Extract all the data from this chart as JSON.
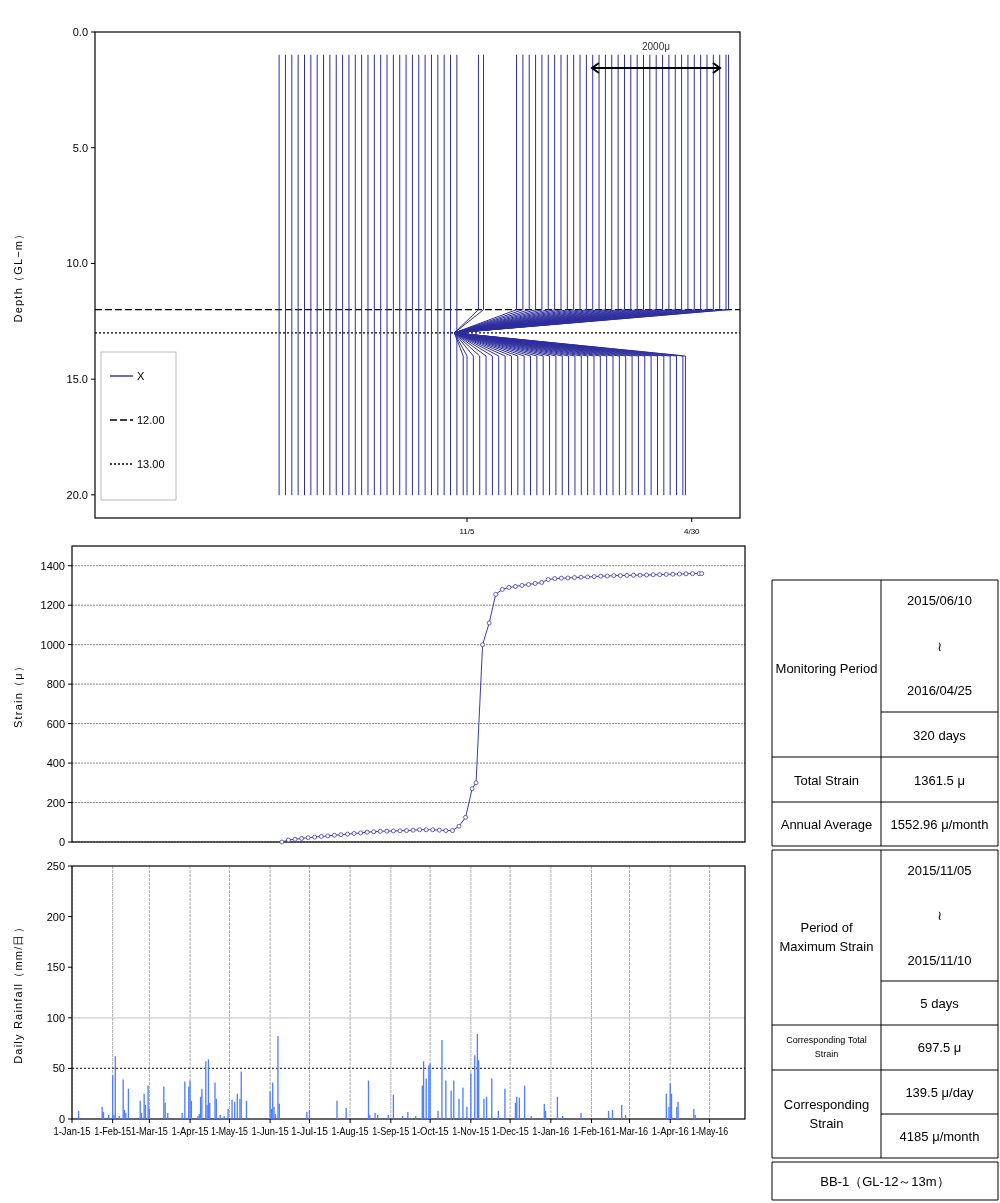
{
  "chart_data": [
    {
      "type": "line",
      "ylabel": "Depth（GL−m）",
      "xlim": [
        "2015-01-16",
        "2016-06-07"
      ],
      "xticks": [
        {
          "value": "2015-11-05",
          "label": "11/5"
        },
        {
          "value": "2016-04-30",
          "label": "4/30"
        }
      ],
      "ylim": [
        21,
        0
      ],
      "yticks": [
        {
          "value": 0,
          "label": "0.0"
        },
        {
          "value": 5,
          "label": "5.0"
        },
        {
          "value": 10,
          "label": "10.0"
        },
        {
          "value": 15,
          "label": "15.0"
        },
        {
          "value": 20,
          "label": "20.0"
        }
      ],
      "legend": "bottom left",
      "annotations": [
        "2000μ"
      ],
      "ref_lines": [
        {
          "axis": "y",
          "value": 12,
          "label": "12.00",
          "color": "#000000",
          "line_style": "dashed"
        },
        {
          "axis": "y",
          "value": 13,
          "label": "13.00",
          "color": "#000000",
          "line_style": "dotted"
        }
      ],
      "series": [
        {
          "name": "X",
          "color": "#2e2e9e",
          "x": [
            "2015-06-10",
            "2015-06-10",
            null,
            "2015-06-15",
            "2015-06-15",
            null,
            "2015-06-20",
            "2015-06-20",
            null,
            "2015-06-25",
            "2015-06-25",
            null,
            "2015-06-30",
            "2015-06-30",
            null,
            "2015-07-05",
            "2015-07-05",
            null,
            "2015-07-10",
            "2015-07-10",
            null,
            "2015-07-15",
            "2015-07-15",
            null,
            "2015-07-20",
            "2015-07-20",
            null,
            "2015-07-25",
            "2015-07-25",
            null,
            "2015-07-30",
            "2015-07-30",
            null,
            "2015-08-04",
            "2015-08-04",
            null,
            "2015-08-09",
            "2015-08-09",
            null,
            "2015-08-14",
            "2015-08-14",
            null,
            "2015-08-19",
            "2015-08-19",
            null,
            "2015-08-24",
            "2015-08-24",
            null,
            "2015-08-29",
            "2015-08-29",
            null,
            "2015-09-03",
            "2015-09-03",
            null,
            "2015-09-08",
            "2015-09-08",
            null,
            "2015-09-13",
            "2015-09-13",
            null,
            "2015-09-18",
            "2015-09-18",
            null,
            "2015-09-23",
            "2015-09-23",
            null,
            "2015-09-28",
            "2015-09-28",
            null,
            "2015-10-03",
            "2015-10-03",
            null,
            "2015-10-08",
            "2015-10-08",
            null,
            "2015-10-13",
            "2015-10-13",
            null,
            "2015-10-18",
            "2015-10-18",
            null,
            "2015-10-23",
            "2015-10-23",
            null,
            "2015-10-28",
            "2015-10-28",
            null,
            "2015-11-02",
            "2015-11-02",
            "2015-10-26",
            "2015-11-14",
            "2015-11-14",
            null,
            "2015-11-05",
            "2015-11-05",
            "2015-10-26",
            "2015-11-18",
            "2015-11-18",
            null,
            "2015-11-10",
            "2015-11-10",
            "2015-10-26",
            "2015-12-14",
            "2015-12-14",
            null,
            "2015-11-15",
            "2015-11-15",
            "2015-10-26",
            "2015-12-19",
            "2015-12-19",
            null,
            "2015-11-20",
            "2015-11-20",
            "2015-10-26",
            "2015-12-24",
            "2015-12-24",
            null,
            "2015-11-25",
            "2015-11-25",
            "2015-10-26",
            "2015-12-29",
            "2015-12-29",
            null,
            "2015-11-30",
            "2015-11-30",
            "2015-10-26",
            "2016-01-03",
            "2016-01-03",
            null,
            "2015-12-05",
            "2015-12-05",
            "2015-10-26",
            "2016-01-08",
            "2016-01-08",
            null,
            "2015-12-10",
            "2015-12-10",
            "2015-10-26",
            "2016-01-13",
            "2016-01-13",
            null,
            "2015-12-15",
            "2015-12-15",
            "2015-10-26",
            "2016-01-18",
            "2016-01-18",
            null,
            "2015-12-20",
            "2015-12-20",
            "2015-10-26",
            "2016-01-23",
            "2016-01-23",
            null,
            "2015-12-25",
            "2015-12-25",
            "2015-10-26",
            "2016-01-28",
            "2016-01-28",
            null,
            "2015-12-30",
            "2015-12-30",
            "2015-10-26",
            "2016-02-02",
            "2016-02-02",
            null,
            "2016-01-04",
            "2016-01-04",
            "2015-10-26",
            "2016-02-07",
            "2016-02-07",
            null,
            "2016-01-09",
            "2016-01-09",
            "2015-10-26",
            "2016-02-12",
            "2016-02-12",
            null,
            "2016-01-14",
            "2016-01-14",
            "2015-10-26",
            "2016-02-17",
            "2016-02-17",
            null,
            "2016-01-19",
            "2016-01-19",
            "2015-10-26",
            "2016-02-22",
            "2016-02-22",
            null,
            "2016-01-24",
            "2016-01-24",
            "2015-10-26",
            "2016-02-27",
            "2016-02-27",
            null,
            "2016-01-29",
            "2016-01-29",
            "2015-10-26",
            "2016-03-03",
            "2016-03-03",
            null,
            "2016-02-03",
            "2016-02-03",
            "2015-10-26",
            "2016-03-08",
            "2016-03-08",
            null,
            "2016-02-08",
            "2016-02-08",
            "2015-10-26",
            "2016-03-13",
            "2016-03-13",
            null,
            "2016-02-13",
            "2016-02-13",
            "2015-10-26",
            "2016-03-18",
            "2016-03-18",
            null,
            "2016-02-18",
            "2016-02-18",
            "2015-10-26",
            "2016-03-23",
            "2016-03-23",
            null,
            "2016-02-23",
            "2016-02-23",
            "2015-10-26",
            "2016-03-28",
            "2016-03-28",
            null,
            "2016-02-28",
            "2016-02-28",
            "2015-10-26",
            "2016-04-02",
            "2016-04-02",
            null,
            "2016-03-04",
            "2016-03-04",
            "2015-10-26",
            "2016-04-07",
            "2016-04-07",
            null,
            "2016-03-09",
            "2016-03-09",
            "2015-10-26",
            "2016-04-12",
            "2016-04-12",
            null,
            "2016-03-14",
            "2016-03-14",
            "2015-10-26",
            "2016-04-17",
            "2016-04-17",
            null,
            "2016-03-19",
            "2016-03-19",
            "2015-10-26",
            "2016-04-22",
            "2016-04-22",
            null,
            "2016-03-24",
            "2016-03-24",
            "2015-10-26",
            "2016-04-27",
            "2016-04-27",
            null,
            "2016-03-29",
            "2016-03-29",
            "2015-10-26",
            "2016-05-02",
            "2016-05-02",
            null,
            "2016-04-03",
            "2016-04-03",
            "2015-10-26",
            "2016-05-07",
            "2016-05-07",
            null,
            "2016-04-08",
            "2016-04-08",
            "2015-10-26",
            "2016-05-12",
            "2016-05-12",
            null,
            "2016-04-13",
            "2016-04-13",
            "2015-10-26",
            "2016-05-17",
            "2016-05-17",
            null,
            "2016-04-18",
            "2016-04-18",
            "2015-10-26",
            "2016-05-22",
            "2016-05-22",
            null,
            "2016-04-23",
            "2016-04-23",
            "2015-10-26",
            "2016-05-27",
            "2016-05-27",
            null,
            "2016-04-25",
            "2016-04-25",
            "2015-10-26",
            "2016-05-29",
            "2016-05-29"
          ],
          "values": [
            20,
            1,
            null,
            20,
            1,
            null,
            20,
            1,
            null,
            20,
            1,
            null,
            20,
            1,
            null,
            20,
            1,
            null,
            20,
            1,
            null,
            20,
            1,
            null,
            20,
            1,
            null,
            20,
            1,
            null,
            20,
            1,
            null,
            20,
            1,
            null,
            20,
            1,
            null,
            20,
            1,
            null,
            20,
            1,
            null,
            20,
            1,
            null,
            20,
            1,
            null,
            20,
            1,
            null,
            20,
            1,
            null,
            20,
            1,
            null,
            20,
            1,
            null,
            20,
            1,
            null,
            20,
            1,
            null,
            20,
            1,
            null,
            20,
            1,
            null,
            20,
            1,
            null,
            20,
            1,
            null,
            20,
            1,
            null,
            20,
            1,
            null,
            20,
            14,
            13,
            12,
            1,
            null,
            20,
            14,
            13,
            12,
            1,
            null,
            20,
            14,
            13,
            12,
            1,
            null,
            20,
            14,
            13,
            12,
            1,
            null,
            20,
            14,
            13,
            12,
            1,
            null,
            20,
            14,
            13,
            12,
            1,
            null,
            20,
            14,
            13,
            12,
            1,
            null,
            20,
            14,
            13,
            12,
            1,
            null,
            20,
            14,
            13,
            12,
            1,
            null,
            20,
            14,
            13,
            12,
            1,
            null,
            20,
            14,
            13,
            12,
            1,
            null,
            20,
            14,
            13,
            12,
            1,
            null,
            20,
            14,
            13,
            12,
            1,
            null,
            20,
            14,
            13,
            12,
            1,
            null,
            20,
            14,
            13,
            12,
            1,
            null,
            20,
            14,
            13,
            12,
            1,
            null,
            20,
            14,
            13,
            12,
            1,
            null,
            20,
            14,
            13,
            12,
            1,
            null,
            20,
            14,
            13,
            12,
            1,
            null,
            20,
            14,
            13,
            12,
            1,
            null,
            20,
            14,
            13,
            12,
            1,
            null,
            20,
            14,
            13,
            12,
            1,
            null,
            20,
            14,
            13,
            12,
            1,
            null,
            20,
            14,
            13,
            12,
            1,
            null,
            20,
            14,
            13,
            12,
            1,
            null,
            20,
            14,
            13,
            12,
            1,
            null,
            20,
            14,
            13,
            12,
            1,
            null,
            20,
            14,
            13,
            12,
            1,
            null,
            20,
            14,
            13,
            12,
            1,
            null,
            20,
            14,
            13,
            12,
            1,
            null,
            20,
            14,
            13,
            12,
            1,
            null,
            20,
            14,
            13,
            12,
            1,
            null,
            20,
            14,
            13,
            12,
            1,
            null,
            20,
            14,
            13,
            12,
            1,
            null,
            20,
            14,
            13,
            12,
            1,
            null,
            20,
            14,
            13,
            12,
            1,
            null,
            20,
            14,
            13,
            12,
            1
          ]
        }
      ]
    },
    {
      "type": "line",
      "ylabel": "Strain（μ）",
      "xlim": [
        "2015-01-01",
        "2016-05-28"
      ],
      "ylim": [
        0,
        1500
      ],
      "yticks": [
        0,
        200,
        400,
        600,
        800,
        1000,
        1200,
        1400
      ],
      "grid": "y",
      "tick_labels": "y",
      "marker": "circle",
      "line_style": "solid",
      "series": [
        {
          "color": "#3b3bb0",
          "x": [
            "2015-06-10",
            "2015-06-15",
            "2015-06-20",
            "2015-06-25",
            "2015-06-30",
            "2015-07-05",
            "2015-07-10",
            "2015-07-15",
            "2015-07-20",
            "2015-07-25",
            "2015-07-30",
            "2015-08-04",
            "2015-08-09",
            "2015-08-14",
            "2015-08-19",
            "2015-08-24",
            "2015-08-29",
            "2015-09-03",
            "2015-09-08",
            "2015-09-13",
            "2015-09-18",
            "2015-09-23",
            "2015-09-28",
            "2015-10-03",
            "2015-10-08",
            "2015-10-13",
            "2015-10-18",
            "2015-10-23",
            "2015-10-28",
            "2015-11-02",
            "2015-11-05",
            "2015-11-10",
            "2015-11-15",
            "2015-11-20",
            "2015-11-25",
            "2015-11-30",
            "2015-12-05",
            "2015-12-10",
            "2015-12-15",
            "2015-12-20",
            "2015-12-25",
            "2015-12-30",
            "2016-01-04",
            "2016-01-09",
            "2016-01-14",
            "2016-01-19",
            "2016-01-24",
            "2016-01-29",
            "2016-02-03",
            "2016-02-08",
            "2016-02-13",
            "2016-02-18",
            "2016-02-23",
            "2016-02-28",
            "2016-03-04",
            "2016-03-09",
            "2016-03-14",
            "2016-03-19",
            "2016-03-24",
            "2016-03-29",
            "2016-04-03",
            "2016-04-08",
            "2016-04-13",
            "2016-04-18",
            "2016-04-23",
            "2016-04-25"
          ],
          "values": [
            0,
            10,
            14,
            18,
            22,
            25,
            28,
            31,
            34,
            37,
            40,
            43,
            46,
            50,
            52,
            54,
            55,
            56,
            57,
            58,
            60,
            62,
            62,
            62,
            60,
            58,
            58,
            80,
            125,
            270,
            300,
            1000,
            1110,
            1255,
            1280,
            1290,
            1295,
            1300,
            1305,
            1310,
            1315,
            1330,
            1335,
            1337,
            1338,
            1340,
            1342,
            1343,
            1345,
            1347,
            1348,
            1350,
            1350,
            1351,
            1352,
            1352,
            1353,
            1354,
            1355,
            1356,
            1357,
            1358,
            1359,
            1360,
            1360,
            1360
          ]
        }
      ]
    },
    {
      "type": "bar",
      "ylabel": "Daily Rainfall（mm/日）",
      "xlim": [
        "2015-01-01",
        "2016-05-28"
      ],
      "ylim": [
        0,
        250
      ],
      "yticks": [
        0,
        50,
        100,
        150,
        200,
        250
      ],
      "grid": "x",
      "xticks": [
        {
          "value": "2015-01-01",
          "label": "1-Jan-15"
        },
        {
          "value": "2015-02-01",
          "label": "1-Feb-15"
        },
        {
          "value": "2015-03-01",
          "label": "1-Mar-15"
        },
        {
          "value": "2015-04-01",
          "label": "1-Apr-15"
        },
        {
          "value": "2015-05-01",
          "label": "1-May-15"
        },
        {
          "value": "2015-06-01",
          "label": "1-Jun-15"
        },
        {
          "value": "2015-07-01",
          "label": "1-Jul-15"
        },
        {
          "value": "2015-08-01",
          "label": "1-Aug-15"
        },
        {
          "value": "2015-09-01",
          "label": "1-Sep-15"
        },
        {
          "value": "2015-10-01",
          "label": "1-Oct-15"
        },
        {
          "value": "2015-11-01",
          "label": "1-Nov-15"
        },
        {
          "value": "2015-12-01",
          "label": "1-Dec-15"
        },
        {
          "value": "2016-01-01",
          "label": "1-Jan-16"
        },
        {
          "value": "2016-02-01",
          "label": "1-Feb-16"
        },
        {
          "value": "2016-03-01",
          "label": "1-Mar-16"
        },
        {
          "value": "2016-04-01",
          "label": "1-Apr-16"
        },
        {
          "value": "2016-05-01",
          "label": "1-May-16"
        }
      ],
      "ref_lines": [
        {
          "axis": "y",
          "value": 50,
          "color": "#333333",
          "line_style": "dotted"
        },
        {
          "axis": "y",
          "value": 100,
          "color": "#cccccc",
          "line_style": "solid"
        }
      ],
      "series": [
        {
          "color": "#4f7dff",
          "x": [
            "2015-01-06",
            "2015-01-24",
            "2015-01-25",
            "2015-01-29",
            "2015-02-01",
            "2015-02-02",
            "2015-02-03",
            "2015-02-06",
            "2015-02-09",
            "2015-02-10",
            "2015-02-11",
            "2015-02-13",
            "2015-02-22",
            "2015-02-23",
            "2015-02-25",
            "2015-02-26",
            "2015-02-28",
            "2015-03-01",
            "2015-03-12",
            "2015-03-13",
            "2015-03-15",
            "2015-03-26",
            "2015-03-28",
            "2015-03-31",
            "2015-04-01",
            "2015-04-02",
            "2015-04-07",
            "2015-04-08",
            "2015-04-09",
            "2015-04-10",
            "2015-04-13",
            "2015-04-14",
            "2015-04-15",
            "2015-04-16",
            "2015-04-20",
            "2015-04-21",
            "2015-04-24",
            "2015-04-27",
            "2015-04-30",
            "2015-05-03",
            "2015-05-05",
            "2015-05-07",
            "2015-05-09",
            "2015-05-10",
            "2015-05-14",
            "2015-06-01",
            "2015-06-02",
            "2015-06-03",
            "2015-06-04",
            "2015-06-05",
            "2015-06-07",
            "2015-06-08",
            "2015-06-29",
            "2015-07-01",
            "2015-07-22",
            "2015-07-29",
            "2015-08-15",
            "2015-08-16",
            "2015-08-20",
            "2015-08-22",
            "2015-08-30",
            "2015-09-03",
            "2015-09-10",
            "2015-09-14",
            "2015-09-20",
            "2015-09-25",
            "2015-09-26",
            "2015-09-28",
            "2015-09-30",
            "2015-10-01",
            "2015-10-07",
            "2015-10-10",
            "2015-10-13",
            "2015-10-17",
            "2015-10-19",
            "2015-10-23",
            "2015-10-26",
            "2015-10-29",
            "2015-11-01",
            "2015-11-04",
            "2015-11-06",
            "2015-11-07",
            "2015-11-11",
            "2015-11-13",
            "2015-11-17",
            "2015-11-22",
            "2015-11-27",
            "2015-12-05",
            "2015-12-06",
            "2015-12-08",
            "2015-12-12",
            "2015-12-17",
            "2015-12-27",
            "2015-12-28",
            "2016-01-06",
            "2016-01-10",
            "2016-01-24",
            "2016-02-14",
            "2016-02-17",
            "2016-02-24",
            "2016-02-27",
            "2016-03-29",
            "2016-03-31",
            "2016-04-01",
            "2016-04-02",
            "2016-04-06",
            "2016-04-07",
            "2016-04-19",
            "2016-04-20"
          ],
          "values": [
            8,
            12,
            7,
            4,
            43,
            4,
            62,
            3,
            39,
            9,
            6,
            30,
            18,
            6,
            25,
            14,
            33,
            10,
            32,
            16,
            6,
            6,
            37,
            32,
            38,
            18,
            3,
            5,
            22,
            30,
            57,
            14,
            59,
            16,
            36,
            20,
            4,
            3,
            10,
            19,
            17,
            25,
            20,
            47,
            18,
            27,
            10,
            36,
            12,
            5,
            82,
            15,
            7,
            9,
            18,
            11,
            38,
            4,
            6,
            4,
            4,
            24,
            3,
            7,
            3,
            33,
            57,
            40,
            53,
            55,
            8,
            78,
            38,
            28,
            38,
            20,
            31,
            12,
            45,
            63,
            84,
            58,
            20,
            22,
            40,
            8,
            30,
            16,
            22,
            21,
            33,
            3,
            15,
            8,
            22,
            3,
            6,
            8,
            9,
            14,
            4,
            25,
            12,
            35,
            25,
            12,
            17,
            10,
            4
          ]
        }
      ]
    },
    {
      "type": "other",
      "annotations": [
        "Monitoring Period",
        "2015/06/10",
        "≀",
        "2016/04/25",
        "320 days",
        "Total Strain",
        "1361.5 μ",
        "Annual Average",
        "1552.96 μ/month",
        "Period of Maximum Strain",
        "2015/11/05",
        "≀",
        "2015/11/10",
        "5 days",
        "Corresponding Total Strain",
        "697.5 μ",
        "Corresponding Strain",
        "139.5 μ/day",
        "4185 μ/month",
        "BB-1（GL-12～13m）"
      ]
    }
  ]
}
